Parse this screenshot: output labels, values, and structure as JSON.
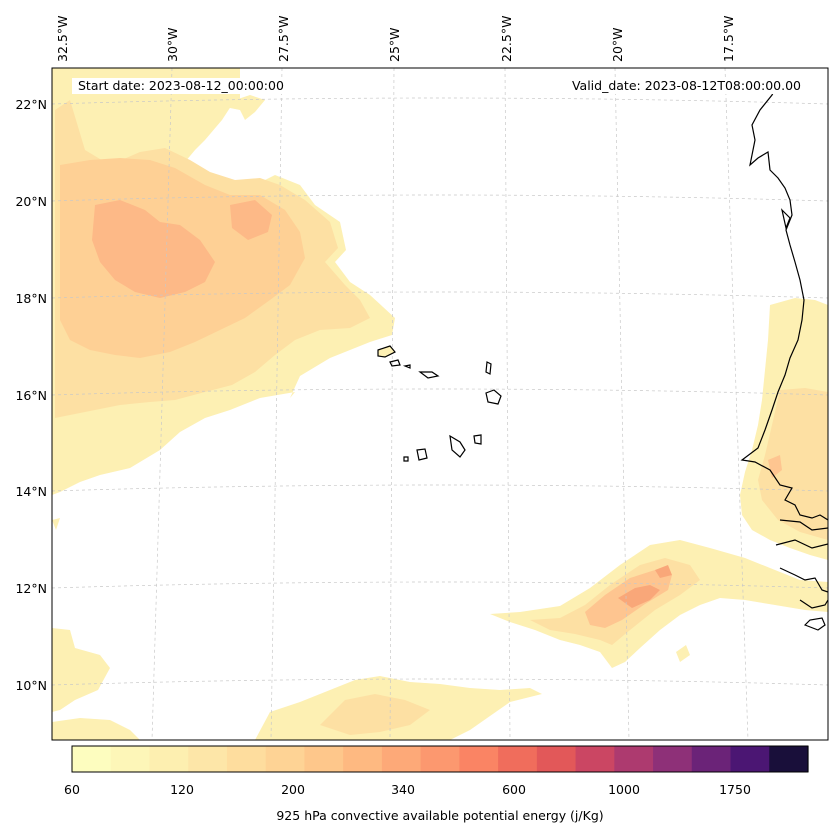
{
  "header": {
    "start_date": "Start date: 2023-08-12_00:00:00",
    "valid_date": "Valid_date: 2023-08-12T08:00:00.00"
  },
  "map": {
    "longitude_labels": [
      "32.5°W",
      "30°W",
      "27.5°W",
      "25°W",
      "22.5°W",
      "20°W",
      "17.5°W"
    ],
    "latitude_labels": [
      "22°N",
      "20°N",
      "18°N",
      "16°N",
      "14°N",
      "12°N",
      "10°N"
    ],
    "gridlines": true,
    "coastline_color": "#000000"
  },
  "colorbar": {
    "title": "925 hPa convective available potential energy (j/Kg)",
    "tick_labels": [
      "60",
      "120",
      "200",
      "340",
      "600",
      "1000",
      "1750"
    ],
    "colors": [
      "#fdfdbf",
      "#fdf6b8",
      "#fdefb0",
      "#fde6a8",
      "#fedd9e",
      "#fed395",
      "#fec78b",
      "#feb981",
      "#fda978",
      "#fc986f",
      "#fa8464",
      "#f06d5c",
      "#e25859",
      "#cb4663",
      "#ad3a6f",
      "#8e3078",
      "#6b2378",
      "#4b1673",
      "#190f3a"
    ]
  },
  "field_colors": {
    "low": "#fdf3b5",
    "mid": "#fde0a3",
    "high": "#fec590",
    "peak": "#f9a779"
  }
}
